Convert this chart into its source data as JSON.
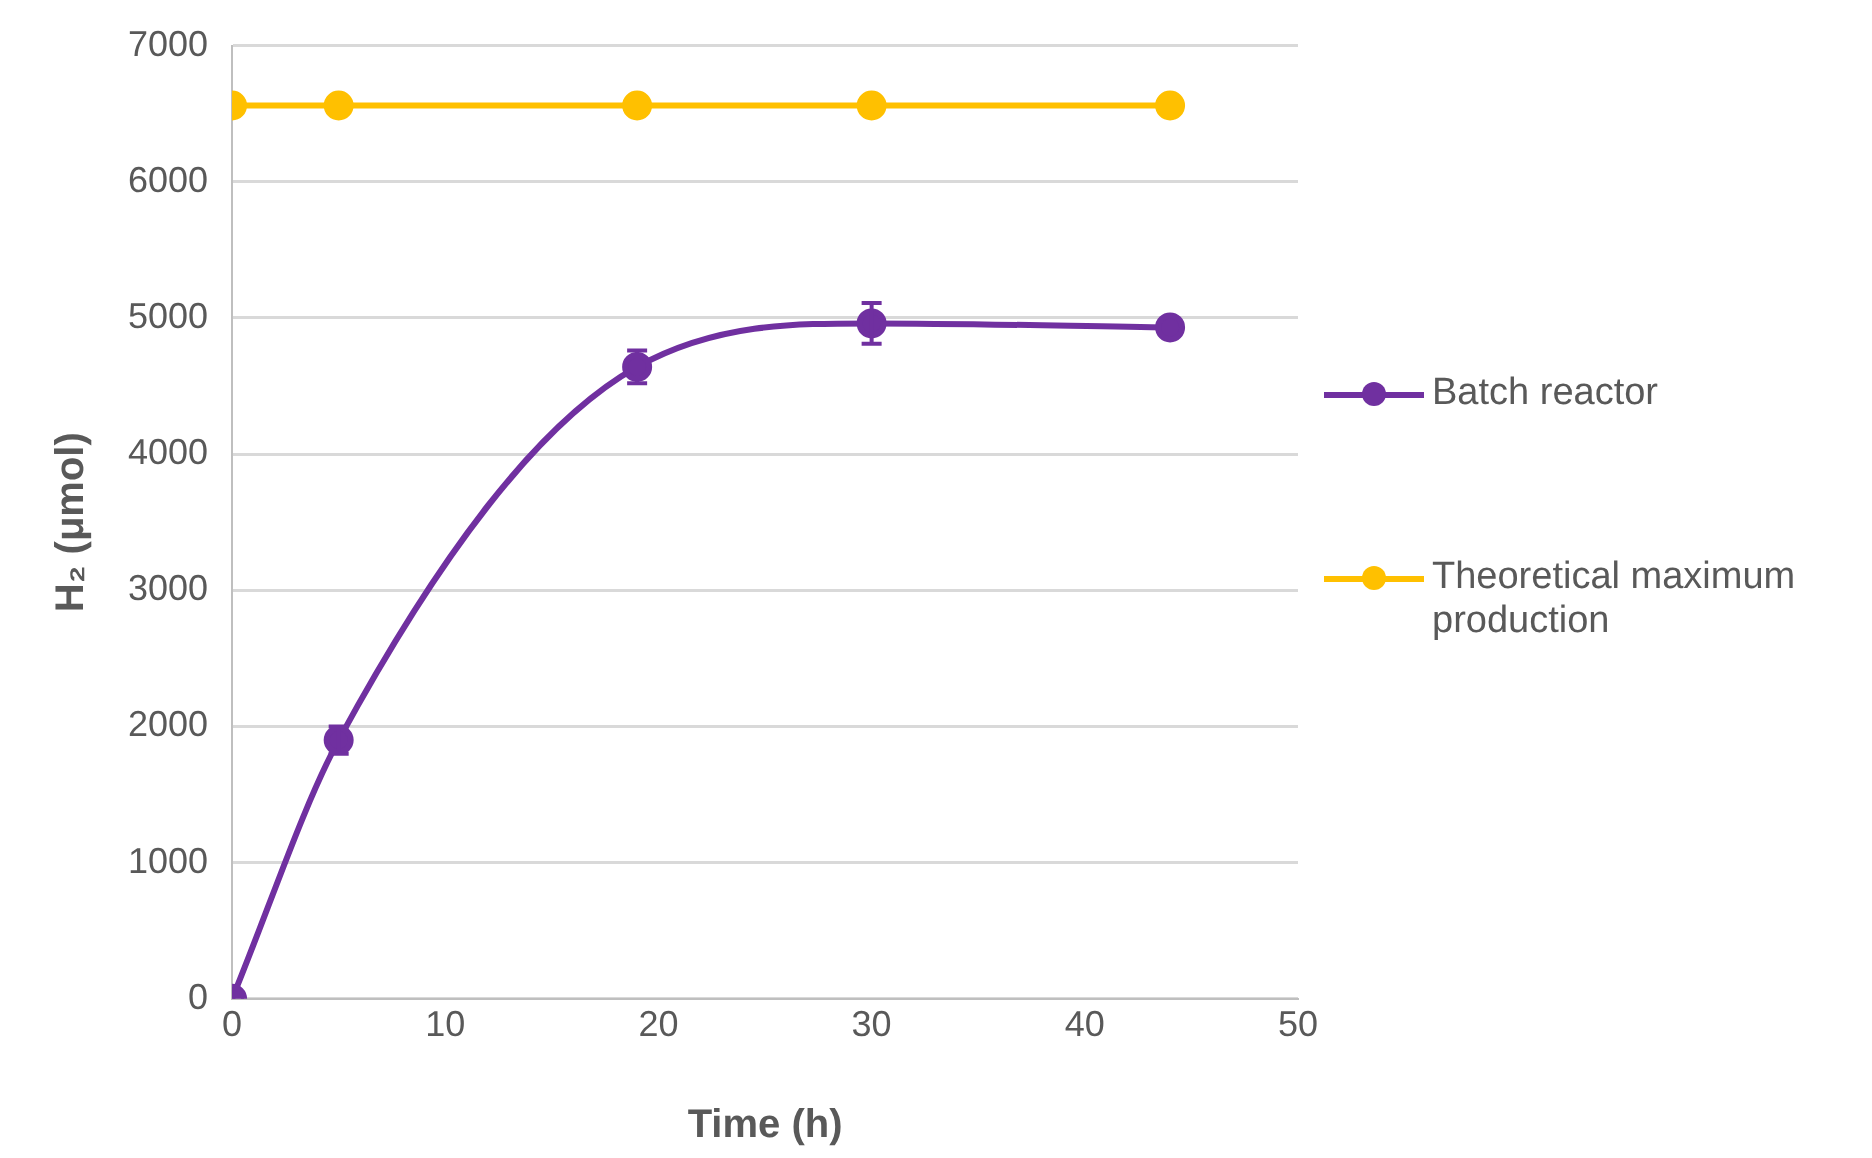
{
  "chart_data": {
    "type": "line",
    "xlabel": "Time (h)",
    "ylabel": "H₂ (μmol)",
    "xlim": [
      0,
      50
    ],
    "xticks": [
      0,
      10,
      20,
      30,
      40,
      50
    ],
    "ylim": [
      0,
      7000
    ],
    "yticks": [
      0,
      1000,
      2000,
      3000,
      4000,
      5000,
      6000,
      7000
    ],
    "grid": "y",
    "legend": "right",
    "marker": "circle",
    "line_style": "solid",
    "series": [
      {
        "name": "Batch reactor",
        "color": "#7030a0",
        "x": [
          0,
          5,
          19,
          30,
          44
        ],
        "values": [
          0,
          1900,
          4640,
          4960,
          4930
        ],
        "errors": [
          null,
          100,
          120,
          150,
          null
        ]
      },
      {
        "name": "Theoretical maximum production",
        "color": "#ffc000",
        "x": [
          0,
          5,
          19,
          30,
          44
        ],
        "values": [
          6560,
          6560,
          6560,
          6560,
          6560
        ]
      }
    ]
  }
}
